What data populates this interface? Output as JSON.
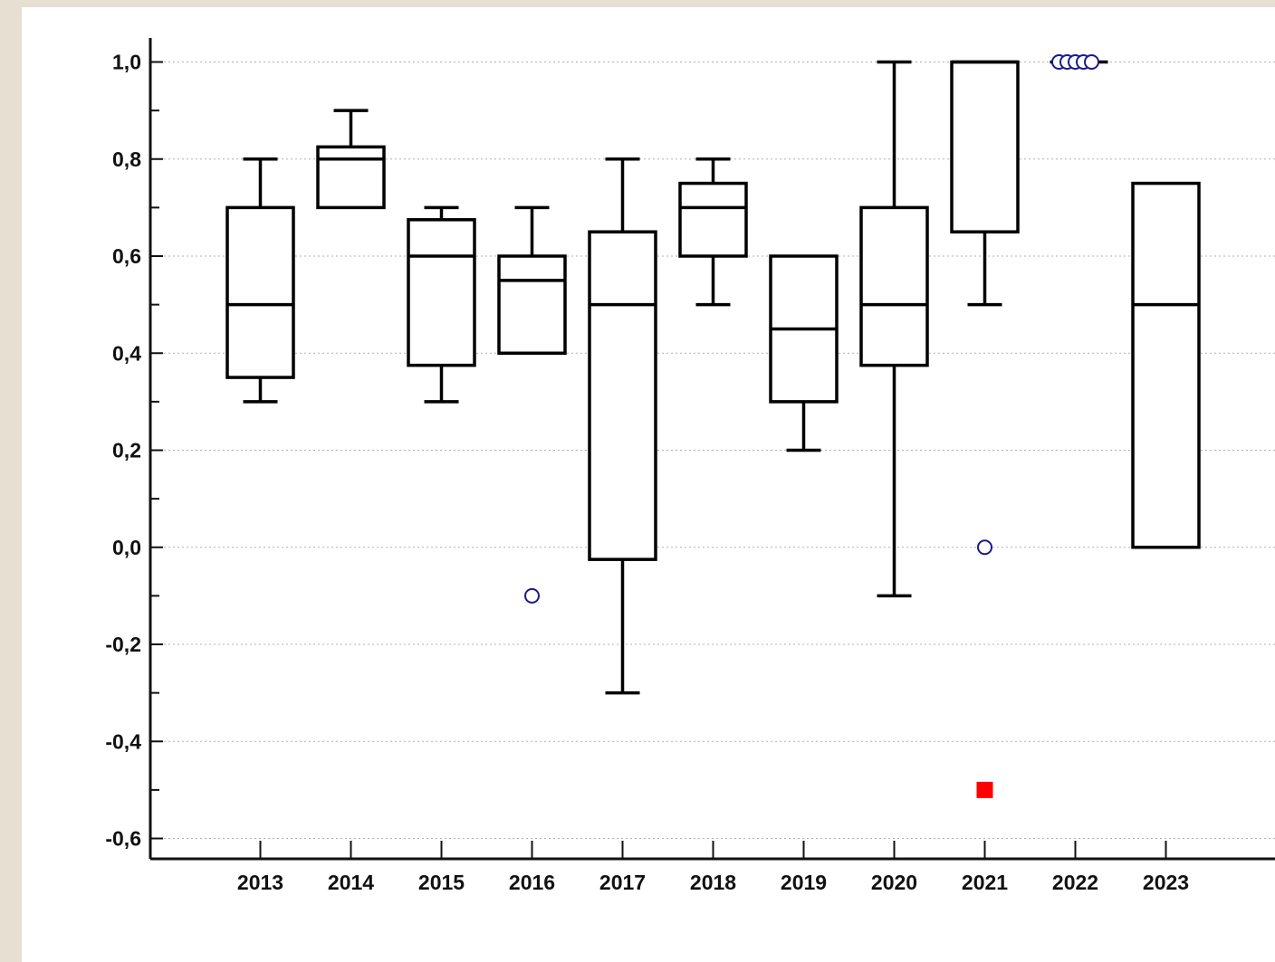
{
  "chart_data": {
    "type": "box",
    "title": "",
    "xlabel": "",
    "ylabel": "",
    "ylim": [
      -0.63,
      1.05
    ],
    "y_ticks": [
      {
        "value": 1.0,
        "label": "1,0"
      },
      {
        "value": 0.8,
        "label": "0,8"
      },
      {
        "value": 0.6,
        "label": "0,6"
      },
      {
        "value": 0.4,
        "label": "0,4"
      },
      {
        "value": 0.2,
        "label": "0,2"
      },
      {
        "value": 0.0,
        "label": "0,0"
      },
      {
        "value": -0.2,
        "label": "-0,2"
      },
      {
        "value": -0.4,
        "label": "-0,4"
      },
      {
        "value": -0.6,
        "label": "-0,6"
      }
    ],
    "y_minor_ticks": [
      0.9,
      0.7,
      0.5,
      0.3,
      0.1,
      -0.1,
      -0.3,
      -0.5
    ],
    "grid": true,
    "categories": [
      "2013",
      "2014",
      "2015",
      "2016",
      "2017",
      "2018",
      "2019",
      "2020",
      "2021",
      "2022",
      "2023"
    ],
    "boxes": [
      {
        "category": "2013",
        "whisker_low": 0.3,
        "q1": 0.35,
        "median": 0.5,
        "q3": 0.7,
        "whisker_high": 0.8,
        "outliers": []
      },
      {
        "category": "2014",
        "whisker_low": 0.7,
        "q1": 0.7,
        "median": 0.8,
        "q3": 0.825,
        "whisker_high": 0.9,
        "outliers": []
      },
      {
        "category": "2015",
        "whisker_low": 0.3,
        "q1": 0.375,
        "median": 0.6,
        "q3": 0.675,
        "whisker_high": 0.7,
        "outliers": []
      },
      {
        "category": "2016",
        "whisker_low": 0.4,
        "q1": 0.4,
        "median": 0.55,
        "q3": 0.6,
        "whisker_high": 0.7,
        "outliers": [
          -0.1
        ]
      },
      {
        "category": "2017",
        "whisker_low": -0.3,
        "q1": -0.025,
        "median": 0.5,
        "q3": 0.65,
        "whisker_high": 0.8,
        "outliers": []
      },
      {
        "category": "2018",
        "whisker_low": 0.5,
        "q1": 0.6,
        "median": 0.7,
        "q3": 0.75,
        "whisker_high": 0.8,
        "outliers": []
      },
      {
        "category": "2019",
        "whisker_low": 0.2,
        "q1": 0.3,
        "median": 0.45,
        "q3": 0.6,
        "whisker_high": 0.6,
        "outliers": []
      },
      {
        "category": "2020",
        "whisker_low": -0.1,
        "q1": 0.375,
        "median": 0.5,
        "q3": 0.7,
        "whisker_high": 1.0,
        "outliers": []
      },
      {
        "category": "2021",
        "whisker_low": 0.5,
        "q1": 0.65,
        "median": 1.0,
        "q3": 1.0,
        "whisker_high": 1.0,
        "outliers": [
          0.0
        ],
        "far_outliers": [
          -0.5
        ]
      },
      {
        "category": "2022",
        "whisker_low": 1.0,
        "q1": 1.0,
        "median": 1.0,
        "q3": 1.0,
        "whisker_high": 1.0,
        "outliers": [
          1.0,
          1.0,
          1.0,
          1.0,
          1.0
        ]
      },
      {
        "category": "2023",
        "whisker_low": 0.0,
        "q1": 0.0,
        "median": 0.5,
        "q3": 0.75,
        "whisker_high": 0.75,
        "outliers": []
      }
    ],
    "colors": {
      "box_stroke": "#000000",
      "outlier_stroke": "#1a1a8a",
      "far_outlier_fill": "#ff0000",
      "grid": "#b0b0b0",
      "background": "#ffffff",
      "page_background": "#e8dfd3"
    }
  }
}
